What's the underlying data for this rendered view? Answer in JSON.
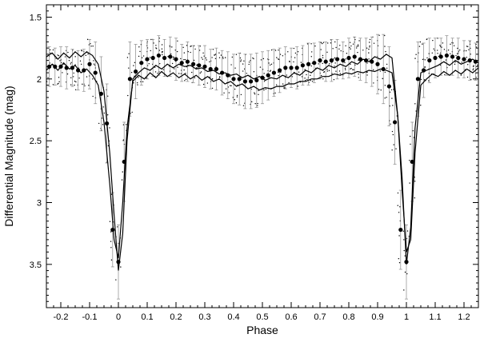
{
  "chart_data": {
    "type": "scatter",
    "title": "",
    "xlabel": "Phase",
    "ylabel": "Differential Magnitude (mag)",
    "xlim": [
      -0.25,
      1.25
    ],
    "ylim": [
      1.4,
      3.85
    ],
    "y_inverted": true,
    "grid": false,
    "legend": "none",
    "xticks": [
      -0.2,
      -0.1,
      0,
      0.1,
      0.2,
      0.3,
      0.4,
      0.5,
      0.6,
      0.7,
      0.8,
      0.9,
      1,
      1.1,
      1.2
    ],
    "xtick_labels": [
      "-0.2",
      "-0.1",
      "0",
      "0.1",
      "0.2",
      "0.3",
      "0.4",
      "0.5",
      "0.6",
      "0.7",
      "0.8",
      "0.9",
      "1",
      "1.1",
      "1.2"
    ],
    "yticks": [
      1.5,
      2,
      2.5,
      3,
      3.5
    ],
    "ytick_labels": [
      "1.5",
      "2",
      "2.5",
      "3",
      "3.5"
    ],
    "colors": {
      "marks": "#000000",
      "errorbars": "#888888"
    },
    "series": [
      {
        "kind": "binned_points_with_errorbars",
        "x": [
          -0.24,
          -0.22,
          -0.2,
          -0.18,
          -0.16,
          -0.14,
          -0.12,
          -0.1,
          -0.08,
          -0.06,
          -0.04,
          -0.02,
          0,
          0.02,
          0.04,
          0.06,
          0.08,
          0.1,
          0.12,
          0.14,
          0.16,
          0.18,
          0.2,
          0.22,
          0.24,
          0.26,
          0.28,
          0.3,
          0.32,
          0.34,
          0.36,
          0.38,
          0.4,
          0.42,
          0.44,
          0.46,
          0.48,
          0.5,
          0.52,
          0.54,
          0.56,
          0.58,
          0.6,
          0.62,
          0.64,
          0.66,
          0.68,
          0.7,
          0.72,
          0.74,
          0.76,
          0.78,
          0.8,
          0.82,
          0.84,
          0.86,
          0.88,
          0.9,
          0.92,
          0.94,
          0.96,
          0.98,
          1,
          1.02,
          1.04,
          1.06,
          1.08,
          1.1,
          1.12,
          1.14,
          1.16,
          1.18,
          1.2,
          1.22,
          1.24
        ],
        "y": [
          1.9,
          1.9,
          1.9,
          1.91,
          1.91,
          1.93,
          1.93,
          1.88,
          1.95,
          2.12,
          2.36,
          3.22,
          3.48,
          2.67,
          2.0,
          1.94,
          1.87,
          1.84,
          1.83,
          1.81,
          1.83,
          1.82,
          1.84,
          1.87,
          1.86,
          1.88,
          1.89,
          1.9,
          1.92,
          1.92,
          1.95,
          1.97,
          2.0,
          2.0,
          2.02,
          2.02,
          2.01,
          1.99,
          1.97,
          1.95,
          1.93,
          1.91,
          1.91,
          1.91,
          1.89,
          1.88,
          1.87,
          1.85,
          1.86,
          1.85,
          1.84,
          1.85,
          1.83,
          1.82,
          1.84,
          1.85,
          1.86,
          1.88,
          1.92,
          2.06,
          2.35,
          3.22,
          3.48,
          2.67,
          2.0,
          1.93,
          1.85,
          1.83,
          1.82,
          1.81,
          1.82,
          1.83,
          1.84,
          1.85,
          1.86
        ],
        "err": [
          0.16,
          0.15,
          0.16,
          0.17,
          0.15,
          0.16,
          0.17,
          0.2,
          0.25,
          0.3,
          0.32,
          0.3,
          0.3,
          0.32,
          0.3,
          0.22,
          0.18,
          0.16,
          0.15,
          0.16,
          0.15,
          0.16,
          0.17,
          0.15,
          0.16,
          0.15,
          0.16,
          0.17,
          0.16,
          0.17,
          0.18,
          0.19,
          0.2,
          0.21,
          0.22,
          0.22,
          0.22,
          0.21,
          0.2,
          0.19,
          0.18,
          0.17,
          0.16,
          0.17,
          0.16,
          0.17,
          0.16,
          0.15,
          0.16,
          0.17,
          0.16,
          0.15,
          0.16,
          0.16,
          0.17,
          0.18,
          0.2,
          0.24,
          0.28,
          0.32,
          0.34,
          0.32,
          0.3,
          0.32,
          0.3,
          0.22,
          0.18,
          0.16,
          0.15,
          0.16,
          0.15,
          0.16,
          0.15,
          0.16,
          0.15
        ]
      },
      {
        "kind": "model_line",
        "x": [
          -0.25,
          -0.23,
          -0.21,
          -0.19,
          -0.17,
          -0.15,
          -0.13,
          -0.11,
          -0.09,
          -0.07,
          -0.05,
          -0.03,
          -0.015,
          0,
          0.015,
          0.03,
          0.05,
          0.07,
          0.09,
          0.11,
          0.13,
          0.15,
          0.17,
          0.19,
          0.21,
          0.23,
          0.25,
          0.27,
          0.29,
          0.31,
          0.33,
          0.35,
          0.37,
          0.39,
          0.41,
          0.43,
          0.45,
          0.47,
          0.49,
          0.51,
          0.53,
          0.55,
          0.57,
          0.59,
          0.61,
          0.63,
          0.65,
          0.67,
          0.69,
          0.71,
          0.73,
          0.75,
          0.77,
          0.79,
          0.81,
          0.83,
          0.85,
          0.87,
          0.89,
          0.91,
          0.93,
          0.95,
          0.97,
          0.985,
          1,
          1.015,
          1.03,
          1.05,
          1.07,
          1.09,
          1.11,
          1.13,
          1.15,
          1.17,
          1.19,
          1.21,
          1.23,
          1.25
        ],
        "y": [
          1.82,
          1.79,
          1.84,
          1.79,
          1.83,
          1.78,
          1.82,
          1.78,
          1.81,
          1.88,
          2.1,
          2.6,
          3.1,
          3.55,
          3.25,
          2.5,
          2.0,
          1.95,
          1.91,
          1.93,
          1.89,
          1.92,
          1.88,
          1.91,
          1.88,
          1.9,
          1.89,
          1.92,
          1.91,
          1.94,
          1.93,
          1.96,
          1.95,
          1.97,
          1.96,
          1.99,
          1.97,
          2.0,
          1.98,
          2.01,
          1.99,
          2.0,
          1.97,
          1.99,
          1.95,
          1.97,
          1.93,
          1.95,
          1.91,
          1.93,
          1.89,
          1.91,
          1.88,
          1.9,
          1.86,
          1.88,
          1.84,
          1.86,
          1.82,
          1.84,
          1.8,
          1.83,
          2.3,
          2.8,
          3.5,
          3.2,
          2.4,
          1.95,
          1.93,
          1.91,
          1.89,
          1.86,
          1.89,
          1.85,
          1.88,
          1.86,
          1.84,
          1.87
        ],
        "style": "thin-dark"
      },
      {
        "kind": "model_line",
        "x": [
          -0.25,
          -0.23,
          -0.21,
          -0.19,
          -0.17,
          -0.15,
          -0.13,
          -0.11,
          -0.09,
          -0.07,
          -0.05,
          -0.03,
          -0.015,
          0,
          0.015,
          0.03,
          0.05,
          0.07,
          0.09,
          0.11,
          0.13,
          0.15,
          0.17,
          0.19,
          0.21,
          0.23,
          0.25,
          0.27,
          0.29,
          0.31,
          0.33,
          0.35,
          0.37,
          0.39,
          0.41,
          0.43,
          0.45,
          0.47,
          0.49,
          0.51,
          0.53,
          0.55,
          0.57,
          0.59,
          0.61,
          0.63,
          0.65,
          0.67,
          0.69,
          0.71,
          0.73,
          0.75,
          0.77,
          0.79,
          0.81,
          0.83,
          0.85,
          0.87,
          0.89,
          0.91,
          0.93,
          0.95,
          0.97,
          0.985,
          1,
          1.015,
          1.03,
          1.05,
          1.07,
          1.09,
          1.11,
          1.13,
          1.15,
          1.17,
          1.19,
          1.21,
          1.23,
          1.25
        ],
        "y": [
          1.93,
          1.88,
          1.93,
          1.87,
          1.92,
          1.89,
          1.95,
          1.92,
          1.97,
          2.05,
          2.35,
          2.85,
          3.3,
          3.45,
          3.0,
          2.4,
          2.02,
          1.97,
          2.0,
          1.95,
          1.99,
          1.94,
          1.98,
          1.95,
          1.99,
          1.96,
          2.0,
          1.97,
          2.01,
          1.98,
          2.02,
          2.0,
          2.04,
          2.02,
          2.06,
          2.04,
          2.08,
          2.06,
          2.09,
          2.07,
          2.08,
          2.06,
          2.06,
          2.04,
          2.04,
          2.02,
          2.02,
          2.0,
          2.0,
          1.98,
          1.98,
          1.96,
          1.97,
          1.95,
          1.96,
          1.94,
          1.95,
          1.93,
          1.94,
          1.92,
          1.93,
          1.95,
          2.3,
          2.9,
          3.4,
          3.3,
          2.6,
          2.05,
          2.0,
          1.96,
          1.98,
          1.94,
          1.97,
          1.93,
          1.96,
          1.92,
          1.95,
          1.91
        ],
        "style": "thin-dark"
      }
    ]
  }
}
